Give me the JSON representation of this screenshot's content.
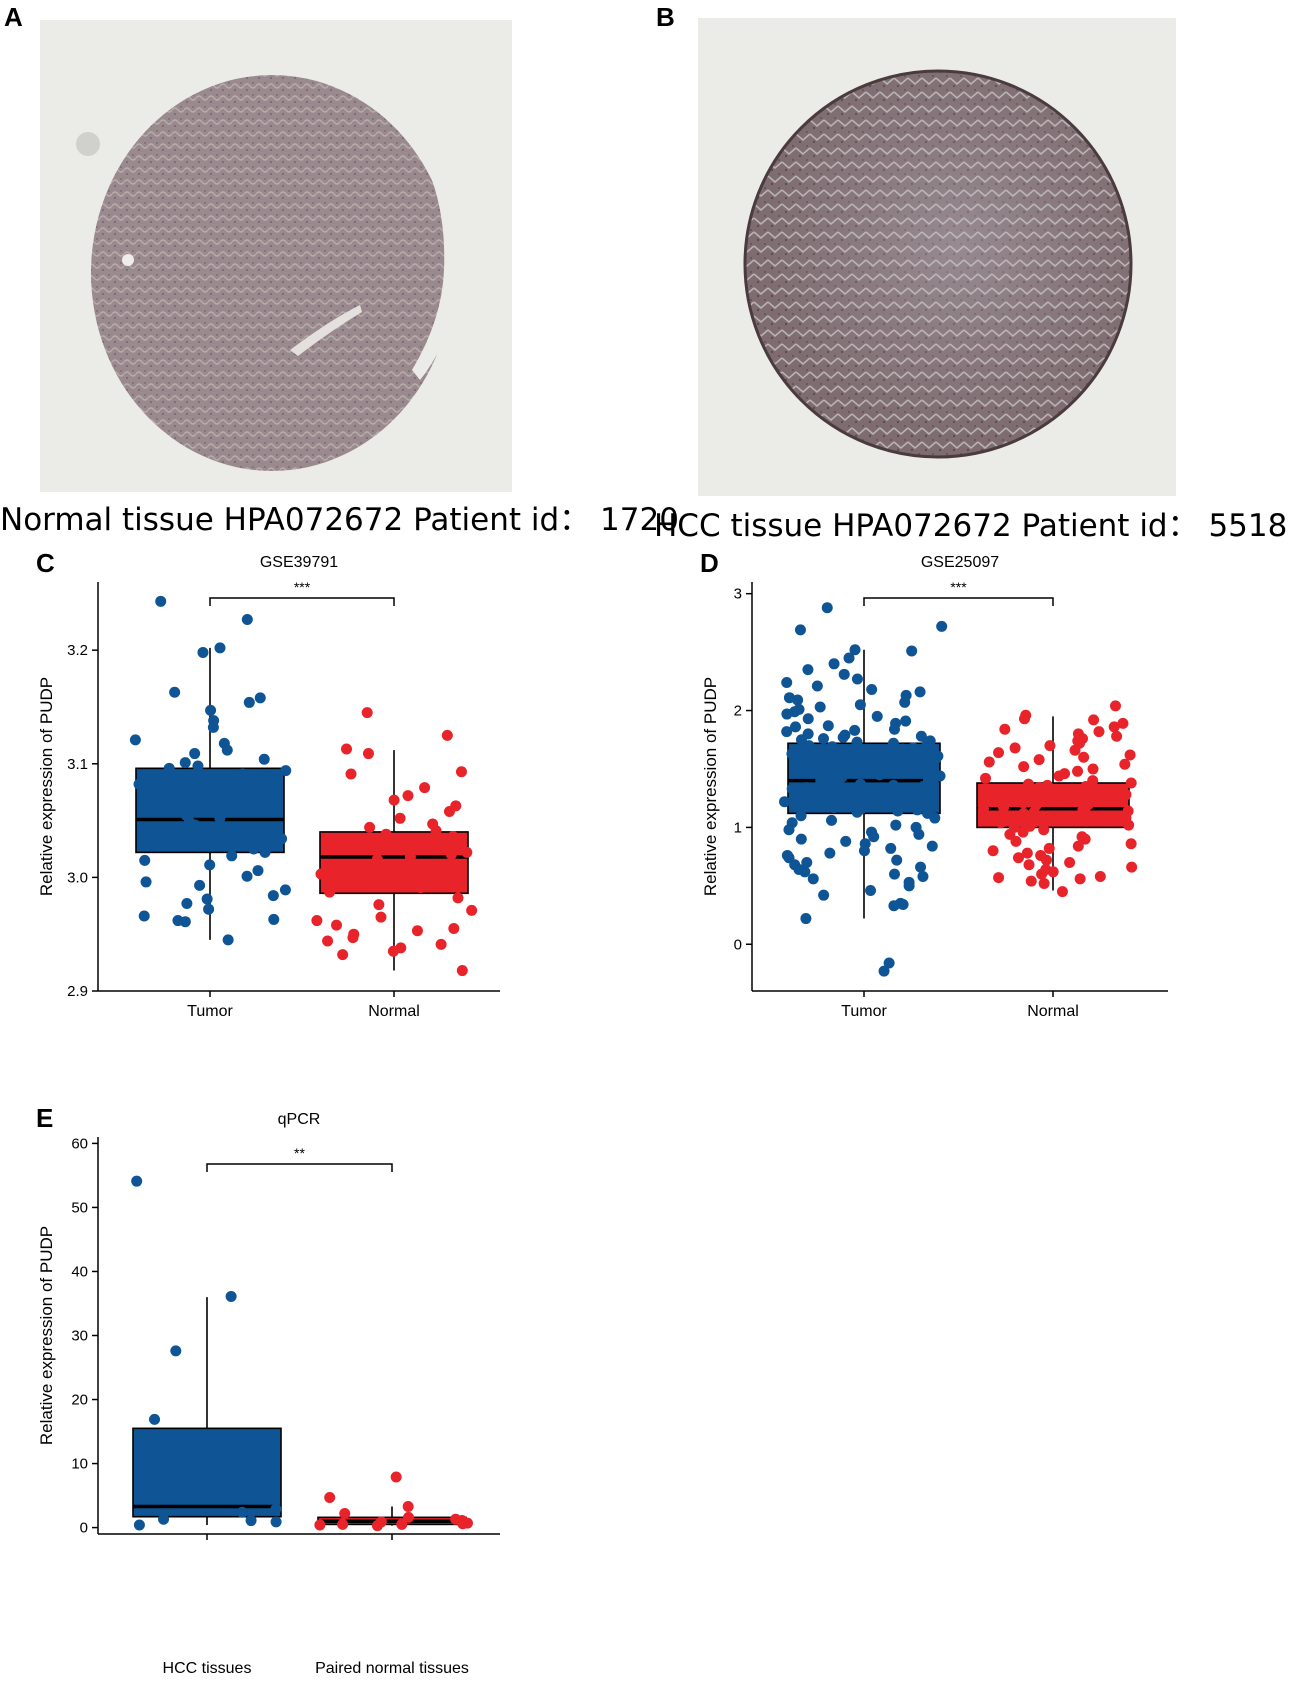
{
  "panels": {
    "a": {
      "letter": "A",
      "caption": "Normal tissue HPA072672 Patient id： 1720"
    },
    "b": {
      "letter": "B",
      "caption": "HCC tissue HPA072672 Patient id： 5518"
    },
    "c": {
      "letter": "C"
    },
    "d": {
      "letter": "D"
    },
    "e": {
      "letter": "E"
    }
  },
  "colors": {
    "tumor": "#0f5494",
    "normal": "#e8242a",
    "stain_normal": "#9a8a8c",
    "stain_hcc": "#7a6a70"
  },
  "chart_data": [
    {
      "id": "C",
      "type": "boxplot",
      "title": "GSE39791",
      "ylabel": "Relative expression of PUDP",
      "ylim": [
        2.9,
        3.26
      ],
      "yticks": [
        2.9,
        3.0,
        3.1,
        3.2
      ],
      "categories": [
        "Tumor",
        "Normal"
      ],
      "significance": "***",
      "boxes": [
        {
          "name": "Tumor",
          "q1": 3.022,
          "median": 3.051,
          "q3": 3.096,
          "whisker_low": 2.945,
          "whisker_high": 3.202,
          "points": [
            3.243,
            3.227,
            3.202,
            3.198,
            3.163,
            3.158,
            3.154,
            3.147,
            3.138,
            3.132,
            3.121,
            3.118,
            3.112,
            3.109,
            3.104,
            3.101,
            3.098,
            3.096,
            3.094,
            3.091,
            3.088,
            3.085,
            3.082,
            3.079,
            3.075,
            3.071,
            3.068,
            3.064,
            3.061,
            3.058,
            3.055,
            3.052,
            3.049,
            3.046,
            3.043,
            3.04,
            3.037,
            3.034,
            3.031,
            3.028,
            3.025,
            3.022,
            3.019,
            3.015,
            3.011,
            3.006,
            3.001,
            2.996,
            2.993,
            2.989,
            2.984,
            2.981,
            2.977,
            2.972,
            2.966,
            2.963,
            2.962,
            2.961,
            2.945
          ]
        },
        {
          "name": "Normal",
          "q1": 2.986,
          "median": 3.018,
          "q3": 3.04,
          "whisker_low": 2.918,
          "whisker_high": 3.112,
          "points": [
            3.145,
            3.125,
            3.113,
            3.109,
            3.093,
            3.091,
            3.079,
            3.072,
            3.068,
            3.063,
            3.058,
            3.052,
            3.047,
            3.044,
            3.041,
            3.038,
            3.036,
            3.034,
            3.031,
            3.028,
            3.025,
            3.022,
            3.02,
            3.018,
            3.016,
            3.013,
            3.01,
            3.007,
            3.003,
            2.999,
            2.995,
            2.991,
            2.987,
            2.982,
            2.976,
            2.971,
            2.965,
            2.962,
            2.958,
            2.955,
            2.953,
            2.95,
            2.947,
            2.944,
            2.941,
            2.938,
            2.935,
            2.932,
            2.918
          ]
        }
      ]
    },
    {
      "id": "D",
      "type": "boxplot",
      "title": "GSE25097",
      "ylabel": "Relative expression of PUDP",
      "ylim": [
        -0.4,
        3.1
      ],
      "yticks": [
        0,
        1,
        2,
        3
      ],
      "categories": [
        "Tumor",
        "Normal"
      ],
      "significance": "***",
      "boxes": [
        {
          "name": "Tumor",
          "q1": 1.12,
          "median": 1.4,
          "q3": 1.72,
          "whisker_low": 0.22,
          "whisker_high": 2.52,
          "points": [
            2.88,
            2.72,
            2.69,
            2.52,
            2.51,
            2.45,
            2.4,
            2.35,
            2.31,
            2.27,
            2.24,
            2.21,
            2.18,
            2.16,
            2.13,
            2.11,
            2.09,
            2.07,
            2.05,
            2.03,
            2.01,
            1.99,
            1.97,
            1.95,
            1.93,
            1.91,
            1.89,
            1.87,
            1.86,
            1.84,
            1.83,
            1.82,
            1.8,
            1.79,
            1.78,
            1.77,
            1.76,
            1.75,
            1.74,
            1.73,
            1.72,
            1.71,
            1.7,
            1.69,
            1.68,
            1.67,
            1.66,
            1.65,
            1.64,
            1.63,
            1.62,
            1.61,
            1.6,
            1.59,
            1.58,
            1.57,
            1.56,
            1.55,
            1.54,
            1.53,
            1.52,
            1.51,
            1.5,
            1.49,
            1.48,
            1.47,
            1.46,
            1.45,
            1.44,
            1.43,
            1.42,
            1.41,
            1.4,
            1.39,
            1.38,
            1.37,
            1.36,
            1.35,
            1.34,
            1.33,
            1.32,
            1.31,
            1.3,
            1.29,
            1.28,
            1.27,
            1.26,
            1.25,
            1.24,
            1.23,
            1.22,
            1.21,
            1.2,
            1.19,
            1.18,
            1.17,
            1.16,
            1.15,
            1.14,
            1.13,
            1.12,
            1.1,
            1.08,
            1.06,
            1.04,
            1.02,
            1.0,
            0.98,
            0.96,
            0.94,
            0.92,
            0.9,
            0.88,
            0.86,
            0.84,
            0.82,
            0.8,
            0.78,
            0.76,
            0.74,
            0.72,
            0.7,
            0.68,
            0.66,
            0.64,
            0.62,
            0.6,
            0.58,
            0.56,
            0.53,
            0.5,
            0.46,
            0.42,
            0.35,
            0.34,
            0.33,
            0.22,
            -0.16,
            -0.23
          ]
        },
        {
          "name": "Normal",
          "q1": 1.0,
          "median": 1.16,
          "q3": 1.38,
          "whisker_low": 0.46,
          "whisker_high": 1.95,
          "points": [
            2.04,
            1.96,
            1.93,
            1.92,
            1.89,
            1.86,
            1.84,
            1.82,
            1.8,
            1.78,
            1.76,
            1.74,
            1.72,
            1.7,
            1.68,
            1.66,
            1.64,
            1.62,
            1.6,
            1.58,
            1.56,
            1.54,
            1.52,
            1.5,
            1.48,
            1.46,
            1.44,
            1.42,
            1.4,
            1.38,
            1.37,
            1.36,
            1.35,
            1.34,
            1.33,
            1.32,
            1.31,
            1.3,
            1.29,
            1.28,
            1.27,
            1.26,
            1.25,
            1.24,
            1.23,
            1.22,
            1.21,
            1.2,
            1.19,
            1.18,
            1.17,
            1.16,
            1.15,
            1.14,
            1.13,
            1.12,
            1.11,
            1.1,
            1.09,
            1.08,
            1.07,
            1.06,
            1.05,
            1.04,
            1.03,
            1.02,
            1.01,
            1.0,
            0.98,
            0.96,
            0.94,
            0.92,
            0.9,
            0.88,
            0.86,
            0.84,
            0.82,
            0.8,
            0.78,
            0.76,
            0.74,
            0.72,
            0.7,
            0.68,
            0.66,
            0.64,
            0.62,
            0.6,
            0.58,
            0.57,
            0.56,
            0.54,
            0.52,
            0.45
          ]
        }
      ]
    },
    {
      "id": "E",
      "type": "boxplot",
      "title": "qPCR",
      "ylabel": "Relative expression of PUDP",
      "ylim": [
        -1,
        61
      ],
      "yticks": [
        0,
        10,
        20,
        30,
        40,
        50,
        60
      ],
      "categories": [
        "HCC tissues",
        "Paired normal tissues"
      ],
      "significance": "**",
      "boxes": [
        {
          "name": "HCC tissues",
          "q1": 1.7,
          "median": 3.3,
          "q3": 15.5,
          "whisker_low": 0.4,
          "whisker_high": 36.0,
          "points": [
            54.1,
            36.1,
            27.6,
            16.9,
            2.9,
            2.4,
            1.3,
            1.1,
            0.9,
            0.4
          ]
        },
        {
          "name": "Paired normal tissues",
          "q1": 0.5,
          "median": 1.0,
          "q3": 1.6,
          "whisker_low": 0.3,
          "whisker_high": 3.3,
          "points": [
            7.9,
            4.7,
            3.3,
            2.2,
            1.6,
            1.3,
            1.1,
            0.9,
            0.7,
            0.6,
            0.5,
            0.5,
            0.4,
            0.3
          ]
        }
      ]
    }
  ]
}
